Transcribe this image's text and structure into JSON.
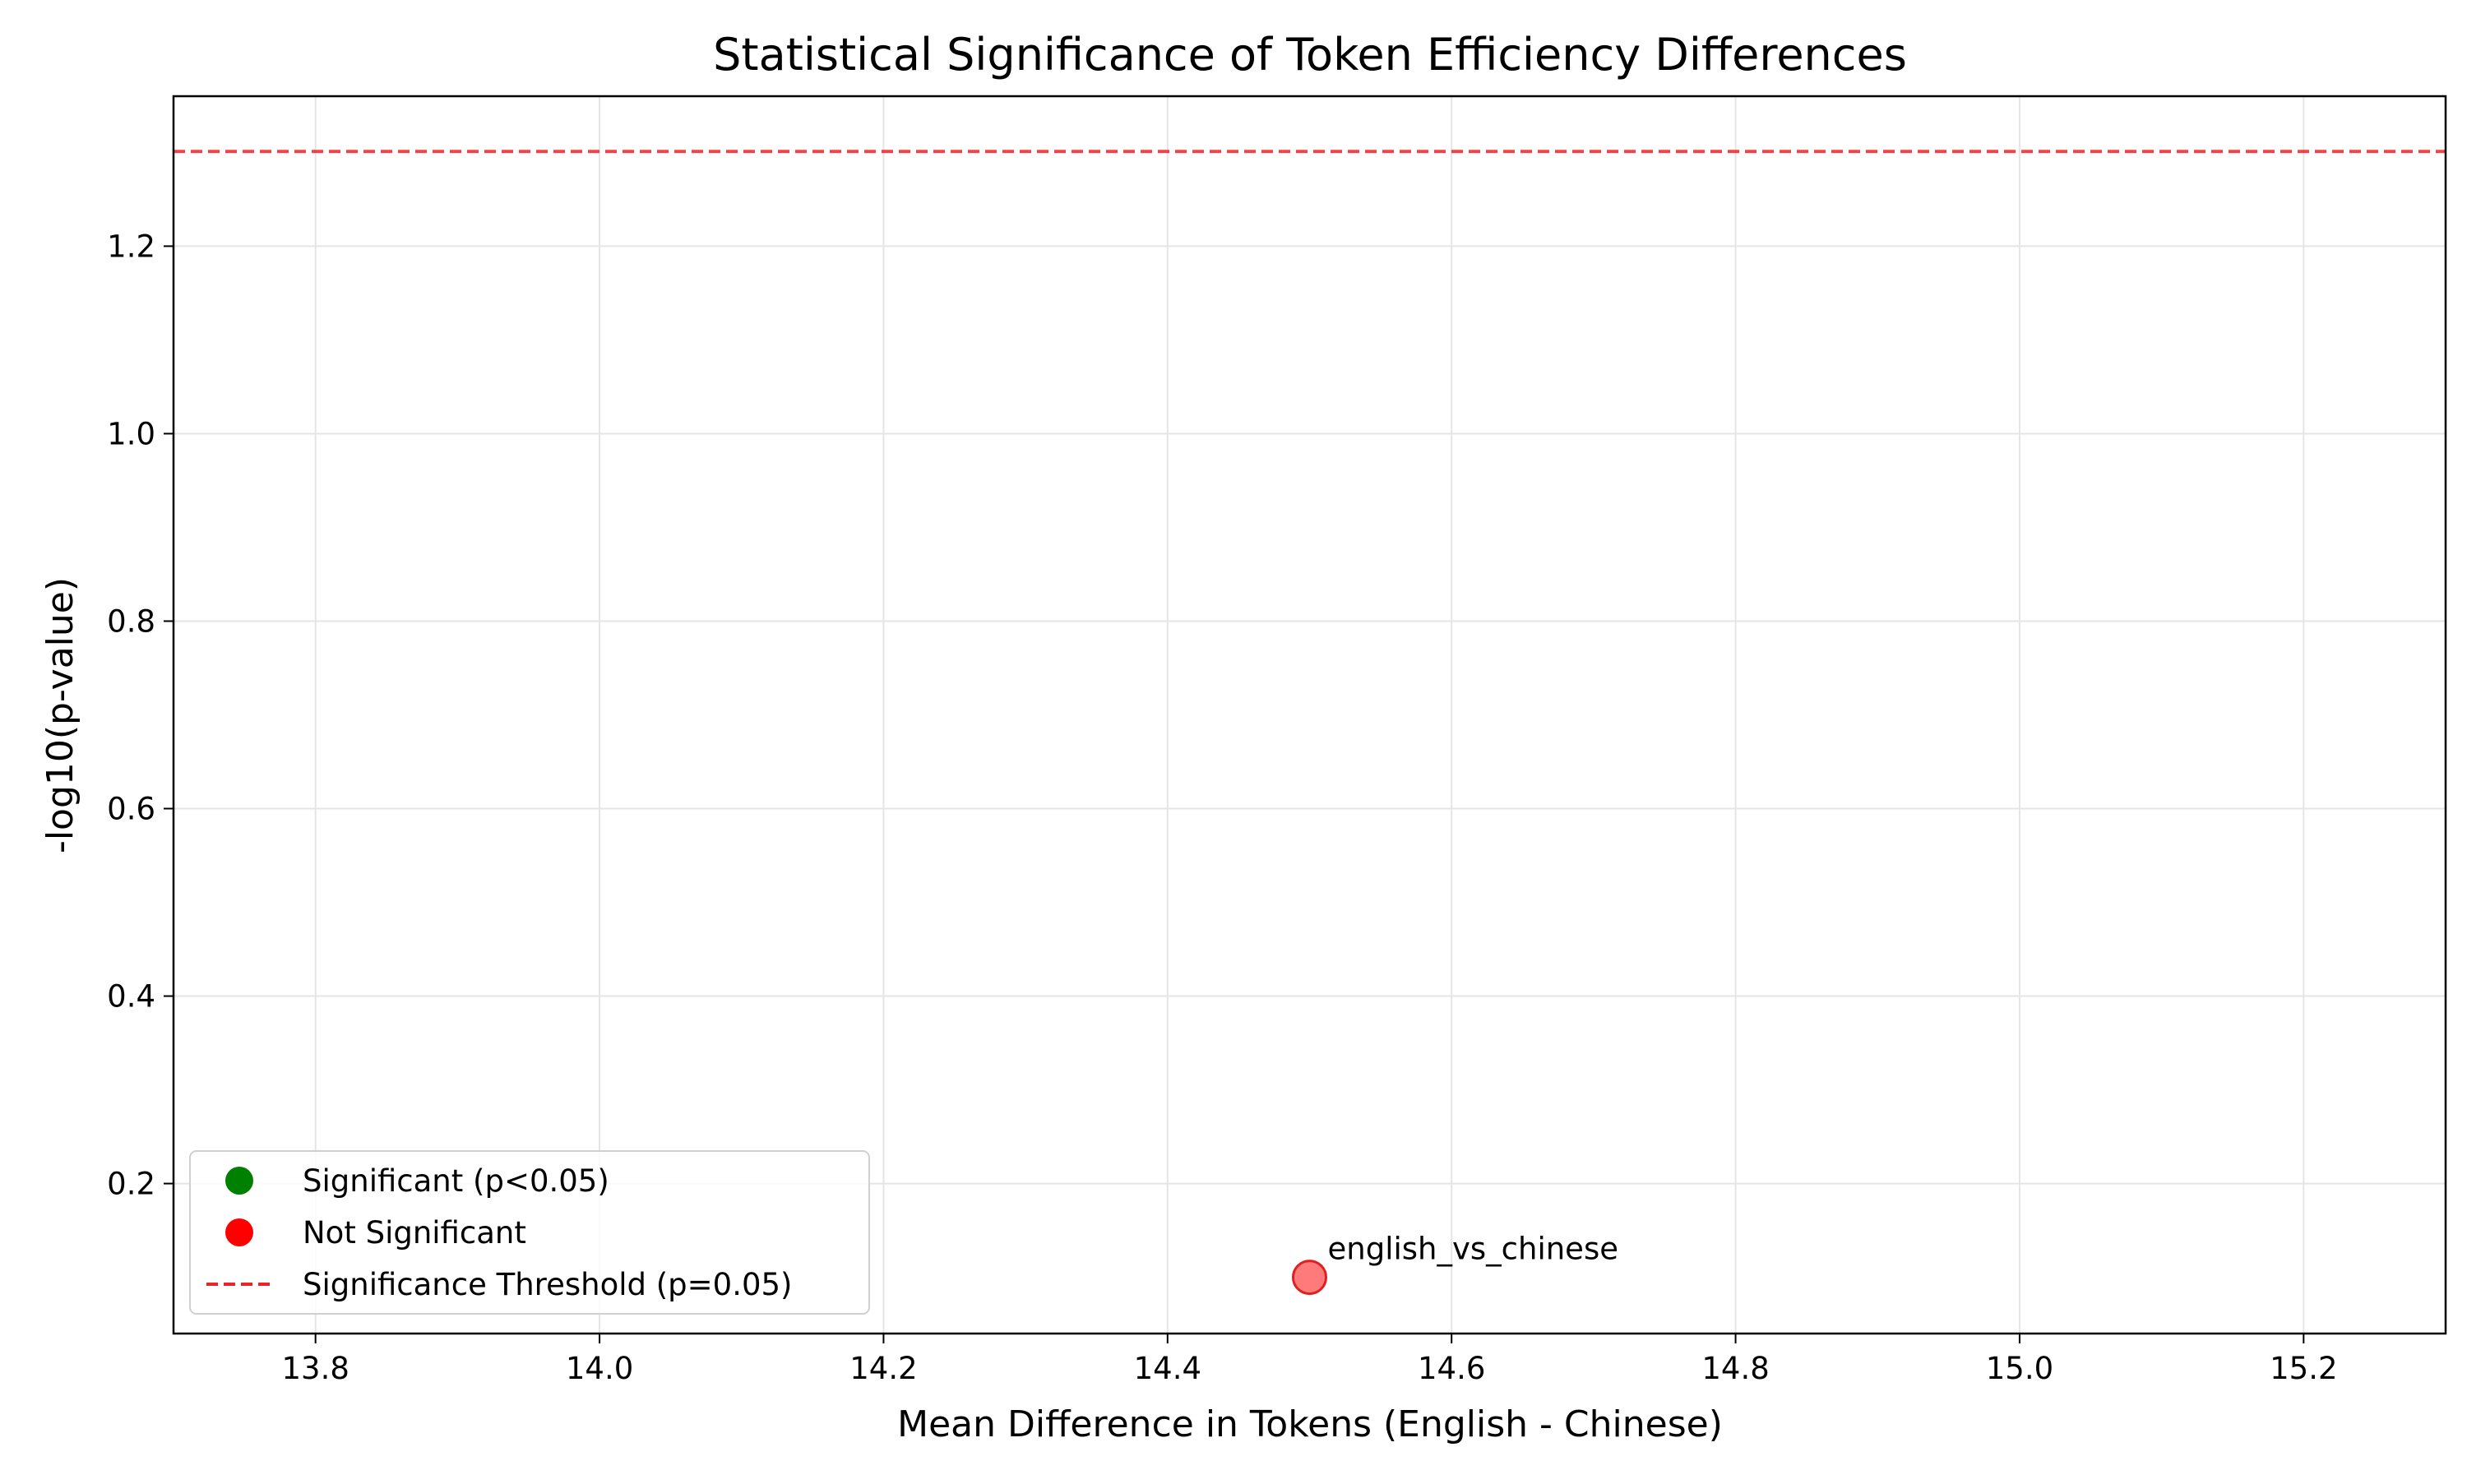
{
  "chart_data": {
    "type": "scatter",
    "title": "Statistical Significance of Token Efficiency Differences",
    "xlabel": "Mean Difference in Tokens (English - Chinese)",
    "ylabel": "-log10(p-value)",
    "xlim": [
      13.7,
      15.3
    ],
    "ylim": [
      0.04,
      1.36
    ],
    "xticks": [
      13.8,
      14.0,
      14.2,
      14.4,
      14.6,
      14.8,
      15.0,
      15.2
    ],
    "xtick_labels": [
      "13.8",
      "14.0",
      "14.2",
      "14.4",
      "14.6",
      "14.8",
      "15.0",
      "15.2"
    ],
    "yticks": [
      0.2,
      0.4,
      0.6,
      0.8,
      1.0,
      1.2
    ],
    "ytick_labels": [
      "0.2",
      "0.4",
      "0.6",
      "0.8",
      "1.0",
      "1.2"
    ],
    "grid": true,
    "points": [
      {
        "label": "english_vs_chinese",
        "x": 14.5,
        "y": 0.1,
        "significant": false
      }
    ],
    "threshold": {
      "y": 1.301,
      "label": "Significance Threshold (p=0.05)",
      "style": "dashed",
      "color": "#e8262a"
    },
    "legend": {
      "placement": "lower-left",
      "entries": [
        {
          "label": "Significant (p<0.05)",
          "marker": "dot",
          "color": "#008000"
        },
        {
          "label": "Not Significant",
          "marker": "dot",
          "color": "#ff0000"
        },
        {
          "label": "Significance Threshold (p=0.05)",
          "marker": "dashed-line",
          "color": "#e8262a"
        }
      ]
    },
    "colors": {
      "not_significant_point": "#ff4d4d",
      "grid": "#e5e5e5"
    }
  }
}
